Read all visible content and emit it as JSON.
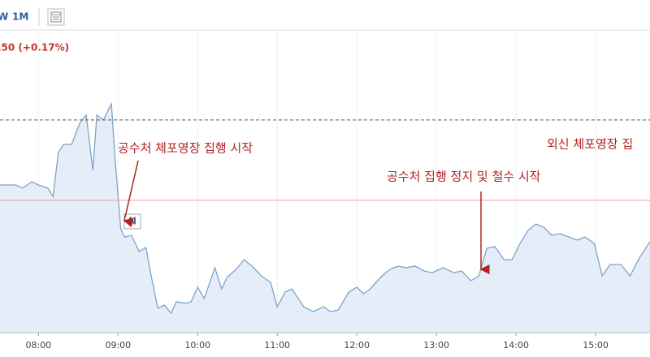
{
  "toolbar": {
    "buttons": [
      "W",
      "1M"
    ]
  },
  "quote": {
    "change": ".50 (+0.17%)"
  },
  "chart_data": {
    "type": "area",
    "color": "#7fa3c8",
    "fill": "#e4edf8",
    "x": [
      "07:31",
      "07:43",
      "07:48",
      "07:55",
      "08:00",
      "08:07",
      "08:11",
      "08:15",
      "08:19",
      "08:25",
      "08:31",
      "08:36",
      "08:41",
      "08:44",
      "08:49",
      "08:55",
      "08:58",
      "09:02",
      "09:05",
      "09:10",
      "09:16",
      "09:21",
      "09:25",
      "09:30",
      "09:35",
      "09:40",
      "09:44",
      "09:51",
      "09:55",
      "10:00",
      "10:05",
      "10:13",
      "10:18",
      "10:22",
      "10:29",
      "10:35",
      "10:41",
      "10:48",
      "10:55",
      "11:00",
      "11:06",
      "11:11",
      "11:20",
      "11:27",
      "11:35",
      "11:40",
      "11:46",
      "11:54",
      "12:00",
      "12:05",
      "12:10",
      "12:19",
      "12:25",
      "12:31",
      "12:37",
      "12:44",
      "12:51",
      "12:57",
      "13:05",
      "13:13",
      "13:19",
      "13:26",
      "13:32",
      "13:38",
      "13:44",
      "13:51",
      "13:57",
      "14:03",
      "14:09",
      "14:15",
      "14:21",
      "14:27",
      "14:33",
      "14:40",
      "14:46",
      "14:52",
      "14:59",
      "15:05",
      "15:11",
      "15:19",
      "15:26",
      "15:33",
      "15:41"
    ],
    "values": [
      52.0,
      52.0,
      50.9,
      53.1,
      52.0,
      50.9,
      48.0,
      63.4,
      66.3,
      66.3,
      73.7,
      76.6,
      57.1,
      76.6,
      74.9,
      80.6,
      60.0,
      36.6,
      33.7,
      34.3,
      28.6,
      30.0,
      20.0,
      8.6,
      9.7,
      6.9,
      10.9,
      10.3,
      10.9,
      16.0,
      12.0,
      22.9,
      15.4,
      19.4,
      22.3,
      25.7,
      23.4,
      20.0,
      17.7,
      9.1,
      14.3,
      15.4,
      9.1,
      7.4,
      9.1,
      7.4,
      8.0,
      14.3,
      16.0,
      13.7,
      15.4,
      20.0,
      22.3,
      23.4,
      22.9,
      23.4,
      21.7,
      21.1,
      22.9,
      21.1,
      21.7,
      18.3,
      20.0,
      29.7,
      30.3,
      25.7,
      25.7,
      31.4,
      36.0,
      38.3,
      37.1,
      34.3,
      34.9,
      33.7,
      32.6,
      33.7,
      31.4,
      20.0,
      24.0,
      24.0,
      20.0,
      26.3,
      32.0
    ],
    "xlim": [
      "07:31",
      "15:41"
    ],
    "xticks": [
      "08:00",
      "09:00",
      "10:00",
      "11:00",
      "12:00",
      "13:00",
      "14:00",
      "15:00"
    ],
    "ylim": [
      0,
      100
    ],
    "grid": true,
    "reference_lines": [
      {
        "value": 74.9,
        "style": "dashed",
        "color": "#555555"
      },
      {
        "value": 46.6,
        "style": "solid",
        "color": "#f0a0a0"
      }
    ],
    "news_marker": "N",
    "annotations": [
      "공수처 체포영장 집행 시작",
      "공수처 집행 정지 및 철수 시작",
      "외신 체포영장 집"
    ]
  }
}
